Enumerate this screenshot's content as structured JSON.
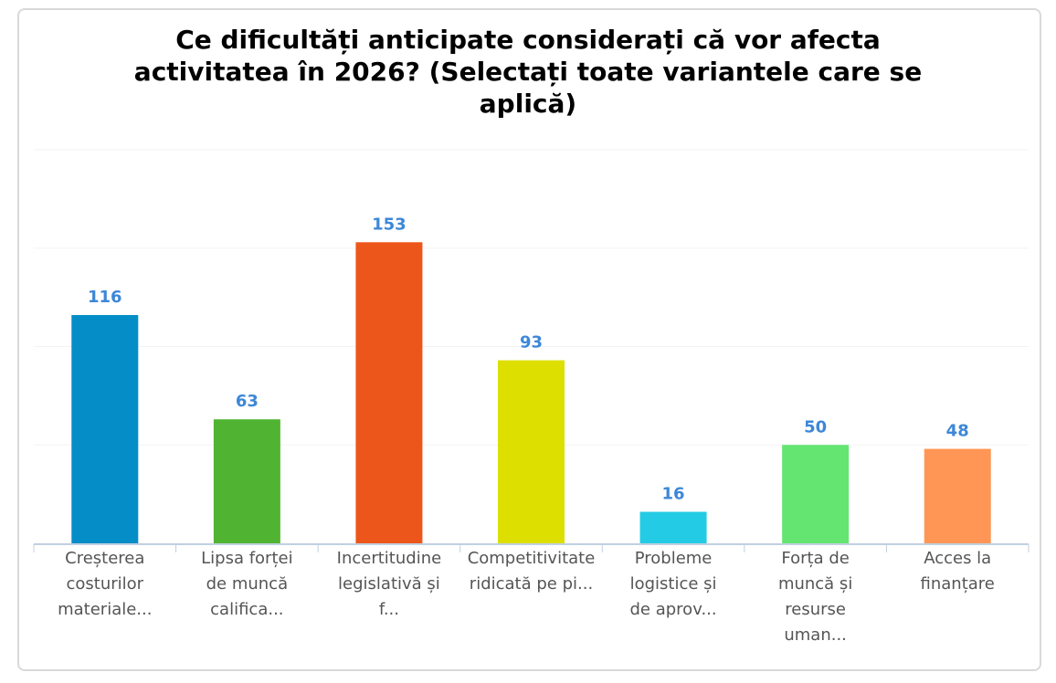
{
  "chart_data": {
    "type": "bar",
    "title": "Ce dificultăți anticipate considerați că vor afecta activitatea în 2026? (Selectați toate variantele care se aplică)",
    "title_lines": [
      "Ce dificultăți anticipate considerați că vor afecta",
      "activitatea în 2026? (Selectați toate variantele care se",
      "aplică)"
    ],
    "categories": [
      "Creșterea costurilor materiale...",
      "Lipsa forței de muncă califica...",
      "Incertitudine legislativă și f...",
      "Competitivitate ridicată pe pi...",
      "Probleme logistice și de aprov...",
      "Forța de muncă și resurse uman...",
      "Acces la finanțare"
    ],
    "category_label_lines": [
      [
        "Creșterea",
        "costurilor",
        "materiale..."
      ],
      [
        "Lipsa forței",
        "de muncă",
        "califica..."
      ],
      [
        "Incertitudine",
        "legislativă și",
        "f..."
      ],
      [
        "Competitivitate",
        "ridicată pe pi..."
      ],
      [
        "Probleme",
        "logistice și",
        "de aprov..."
      ],
      [
        "Forța de",
        "muncă și",
        "resurse",
        "uman..."
      ],
      [
        "Acces la",
        "finanțare"
      ]
    ],
    "values": [
      116,
      63,
      153,
      93,
      16,
      50,
      48
    ],
    "colors": [
      "#058dc7",
      "#50b432",
      "#ed561b",
      "#dddf00",
      "#24cbe5",
      "#64e572",
      "#ff9655"
    ],
    "data_label_color": "#3d87d8",
    "xlabel": "",
    "ylabel": "",
    "ylim": [
      0,
      200
    ],
    "ytick_step": 50,
    "grid": true,
    "legend": "none"
  }
}
